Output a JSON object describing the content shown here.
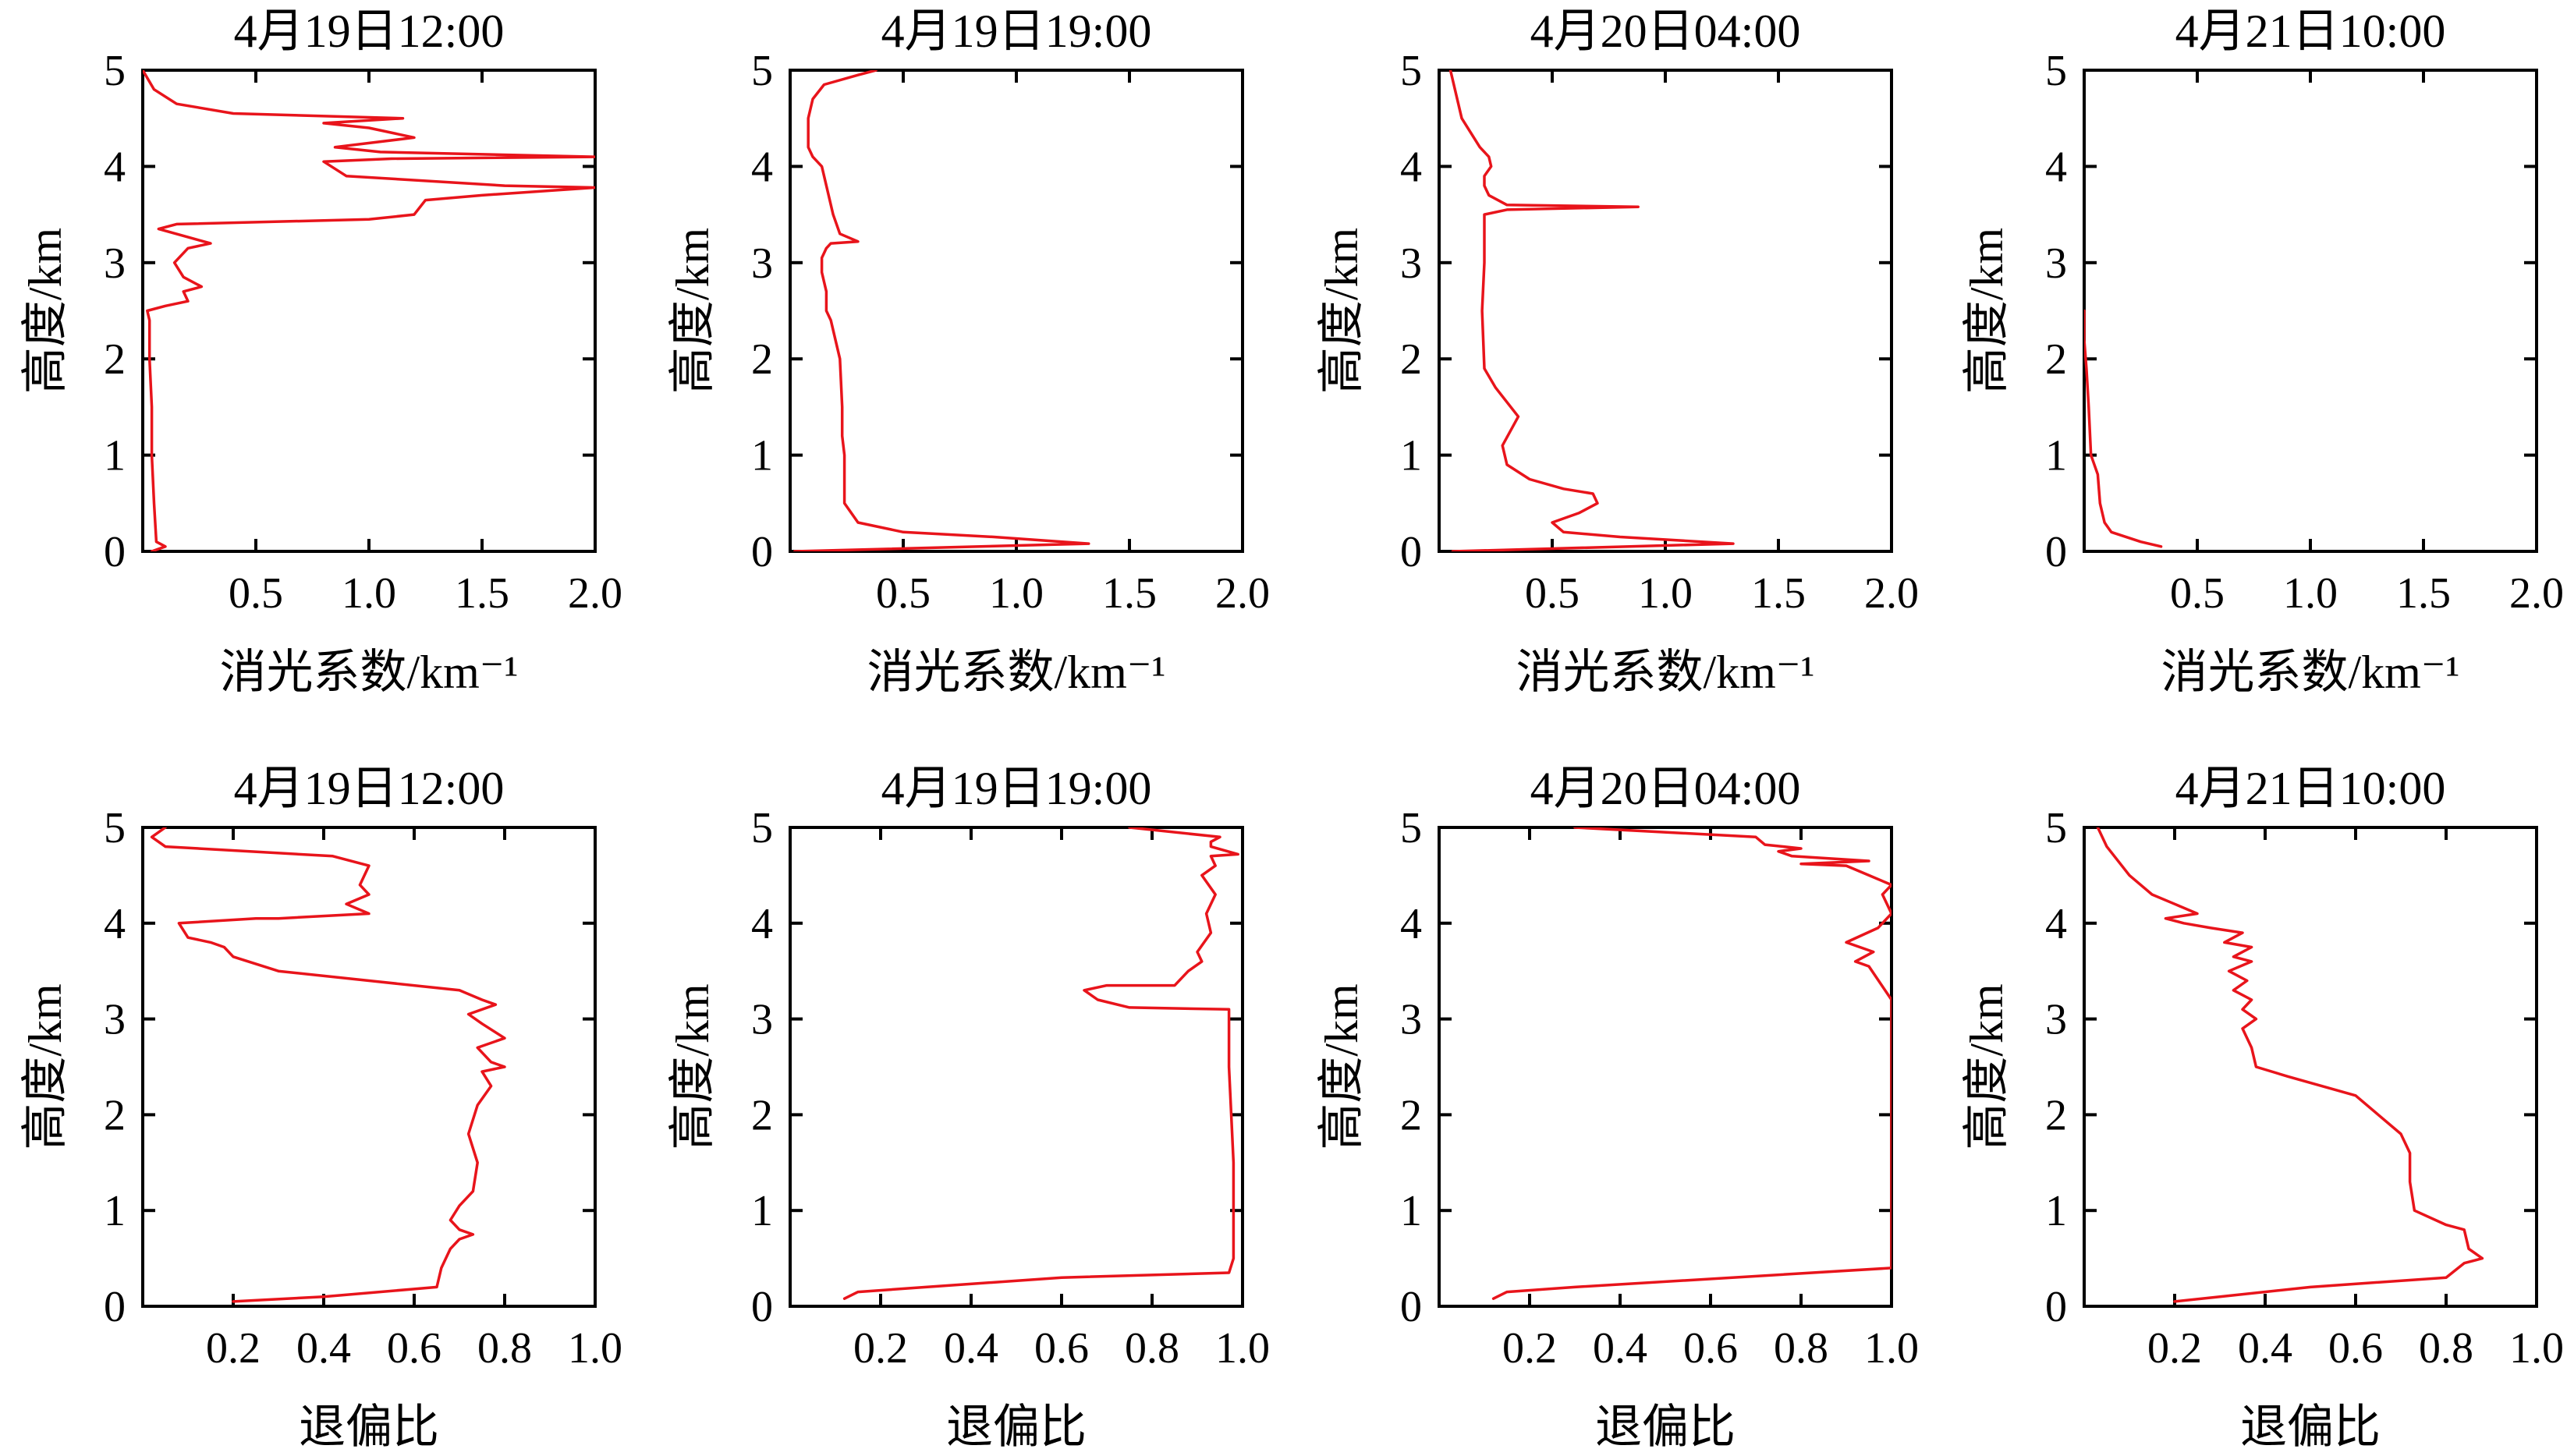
{
  "colors": {
    "series": "#e8141b",
    "axes": "#000000"
  },
  "chart_data": [
    {
      "type": "line",
      "title": "4月19日12:00",
      "xlabel": "消光系数/km⁻¹",
      "ylabel": "高度/km",
      "xlim": [
        0,
        2.0
      ],
      "ylim": [
        0,
        5
      ],
      "xticks": [
        "0.5",
        "1.0",
        "1.5",
        "2.0"
      ],
      "yticks": [
        "0",
        "1",
        "2",
        "3",
        "4",
        "5"
      ],
      "series": [
        {
          "name": "消光系数",
          "x": [
            0.04,
            0.1,
            0.06,
            0.05,
            0.04,
            0.04,
            0.03,
            0.03,
            0.02,
            0.1,
            0.2,
            0.18,
            0.26,
            0.18,
            0.14,
            0.2,
            0.3,
            0.07,
            0.15,
            1.0,
            1.2,
            1.25,
            1.5,
            2.0,
            1.6,
            0.9,
            0.8,
            1.1,
            2.0,
            1.05,
            0.85,
            1.2,
            1.0,
            0.8,
            1.15,
            0.4,
            0.15,
            0.05,
            0.0
          ],
          "y": [
            0.0,
            0.05,
            0.1,
            0.5,
            1.0,
            1.5,
            2.0,
            2.4,
            2.5,
            2.55,
            2.6,
            2.7,
            2.75,
            2.85,
            3.0,
            3.15,
            3.2,
            3.35,
            3.4,
            3.45,
            3.5,
            3.65,
            3.7,
            3.78,
            3.8,
            3.9,
            4.05,
            4.08,
            4.1,
            4.15,
            4.2,
            4.3,
            4.4,
            4.45,
            4.5,
            4.55,
            4.65,
            4.8,
            5.0
          ]
        }
      ]
    },
    {
      "type": "line",
      "title": "4月19日19:00",
      "xlabel": "消光系数/km⁻¹",
      "ylabel": "高度/km",
      "xlim": [
        0,
        2.0
      ],
      "ylim": [
        0,
        5
      ],
      "xticks": [
        "0.5",
        "1.0",
        "1.5",
        "2.0"
      ],
      "yticks": [
        "0",
        "1",
        "2",
        "3",
        "4",
        "5"
      ],
      "series": [
        {
          "name": "消光系数",
          "x": [
            0.02,
            1.32,
            0.9,
            0.5,
            0.3,
            0.24,
            0.24,
            0.23,
            0.23,
            0.22,
            0.18,
            0.16,
            0.16,
            0.15,
            0.14,
            0.14,
            0.15,
            0.16,
            0.18,
            0.3,
            0.22,
            0.19,
            0.17,
            0.15,
            0.14,
            0.1,
            0.08,
            0.08,
            0.1,
            0.15,
            0.3,
            0.38
          ],
          "y": [
            0.0,
            0.08,
            0.15,
            0.2,
            0.3,
            0.5,
            1.0,
            1.2,
            1.5,
            2.0,
            2.4,
            2.5,
            2.7,
            2.8,
            2.9,
            3.05,
            3.1,
            3.15,
            3.2,
            3.22,
            3.3,
            3.5,
            3.7,
            3.9,
            4.0,
            4.1,
            4.2,
            4.5,
            4.7,
            4.85,
            4.95,
            5.0
          ]
        }
      ]
    },
    {
      "type": "line",
      "title": "4月20日04:00",
      "xlabel": "消光系数/km⁻¹",
      "ylabel": "高度/km",
      "xlim": [
        0,
        2.0
      ],
      "ylim": [
        0,
        5
      ],
      "xticks": [
        "0.5",
        "1.0",
        "1.5",
        "2.0"
      ],
      "yticks": [
        "0",
        "1",
        "2",
        "3",
        "4",
        "5"
      ],
      "series": [
        {
          "name": "消光系数",
          "x": [
            0.06,
            1.3,
            0.8,
            0.55,
            0.5,
            0.62,
            0.7,
            0.68,
            0.55,
            0.4,
            0.3,
            0.28,
            0.35,
            0.3,
            0.25,
            0.2,
            0.19,
            0.2,
            0.2,
            0.3,
            0.88,
            0.3,
            0.22,
            0.2,
            0.2,
            0.23,
            0.22,
            0.18,
            0.1,
            0.05
          ],
          "y": [
            0.0,
            0.08,
            0.15,
            0.2,
            0.3,
            0.4,
            0.5,
            0.6,
            0.65,
            0.75,
            0.9,
            1.1,
            1.4,
            1.55,
            1.7,
            1.9,
            2.5,
            3.0,
            3.5,
            3.55,
            3.58,
            3.6,
            3.7,
            3.8,
            3.9,
            4.0,
            4.1,
            4.2,
            4.5,
            5.0
          ]
        }
      ]
    },
    {
      "type": "line",
      "title": "4月21日10:00",
      "xlabel": "消光系数/km⁻¹",
      "ylabel": "高度/km",
      "xlim": [
        0,
        2.0
      ],
      "ylim": [
        0,
        5
      ],
      "xticks": [
        "0.5",
        "1.0",
        "1.5",
        "2.0"
      ],
      "yticks": [
        "0",
        "1",
        "2",
        "3",
        "4",
        "5"
      ],
      "series": [
        {
          "name": "消光系数",
          "x": [
            0.34,
            0.25,
            0.12,
            0.09,
            0.07,
            0.06,
            0.03,
            0.02,
            0.01,
            0.0,
            0.0
          ],
          "y": [
            0.05,
            0.1,
            0.2,
            0.3,
            0.5,
            0.8,
            1.0,
            1.5,
            1.9,
            2.2,
            2.5
          ]
        }
      ]
    },
    {
      "type": "line",
      "title": "4月19日12:00",
      "xlabel": "退偏比",
      "ylabel": "高度/km",
      "xlim": [
        0,
        1.0
      ],
      "ylim": [
        0,
        5
      ],
      "xticks": [
        "0.2",
        "0.4",
        "0.6",
        "0.8",
        "1.0"
      ],
      "yticks": [
        "0",
        "1",
        "2",
        "3",
        "4",
        "5"
      ],
      "series": [
        {
          "name": "退偏比",
          "x": [
            0.2,
            0.4,
            0.65,
            0.66,
            0.68,
            0.7,
            0.73,
            0.7,
            0.68,
            0.7,
            0.73,
            0.74,
            0.72,
            0.74,
            0.77,
            0.75,
            0.8,
            0.77,
            0.74,
            0.8,
            0.75,
            0.72,
            0.78,
            0.75,
            0.7,
            0.5,
            0.3,
            0.2,
            0.18,
            0.15,
            0.1,
            0.08,
            0.25,
            0.3,
            0.5,
            0.45,
            0.5,
            0.48,
            0.5,
            0.42,
            0.05,
            0.02,
            0.05
          ],
          "y": [
            0.05,
            0.1,
            0.2,
            0.4,
            0.6,
            0.7,
            0.75,
            0.8,
            0.9,
            1.05,
            1.2,
            1.5,
            1.8,
            2.1,
            2.3,
            2.45,
            2.5,
            2.55,
            2.7,
            2.8,
            2.95,
            3.05,
            3.15,
            3.2,
            3.3,
            3.4,
            3.5,
            3.65,
            3.75,
            3.8,
            3.85,
            4.0,
            4.05,
            4.05,
            4.1,
            4.2,
            4.3,
            4.4,
            4.6,
            4.7,
            4.8,
            4.9,
            5.0
          ]
        }
      ]
    },
    {
      "type": "line",
      "title": "4月19日19:00",
      "xlabel": "退偏比",
      "ylabel": "高度/km",
      "xlim": [
        0,
        1.0
      ],
      "ylim": [
        0,
        5
      ],
      "xticks": [
        "0.2",
        "0.4",
        "0.6",
        "0.8",
        "1.0"
      ],
      "yticks": [
        "0",
        "1",
        "2",
        "3",
        "4",
        "5"
      ],
      "series": [
        {
          "name": "退偏比",
          "x": [
            0.12,
            0.15,
            0.3,
            0.6,
            0.97,
            0.98,
            0.98,
            0.97,
            0.97,
            0.75,
            0.68,
            0.65,
            0.7,
            0.85,
            0.88,
            0.91,
            0.9,
            0.93,
            0.92,
            0.94,
            0.91,
            0.94,
            0.93,
            0.99,
            0.93,
            0.93,
            0.95,
            0.75
          ],
          "y": [
            0.08,
            0.15,
            0.2,
            0.3,
            0.35,
            0.5,
            1.5,
            2.5,
            3.1,
            3.12,
            3.2,
            3.3,
            3.35,
            3.35,
            3.5,
            3.6,
            3.7,
            3.9,
            4.1,
            4.3,
            4.5,
            4.6,
            4.7,
            4.72,
            4.8,
            4.85,
            4.9,
            5.0
          ]
        }
      ]
    },
    {
      "type": "line",
      "title": "4月20日04:00",
      "xlabel": "退偏比",
      "ylabel": "高度/km",
      "xlim": [
        0,
        1.0
      ],
      "ylim": [
        0,
        5
      ],
      "xticks": [
        "0.2",
        "0.4",
        "0.6",
        "0.8",
        "1.0"
      ],
      "yticks": [
        "0",
        "1",
        "2",
        "3",
        "4",
        "5"
      ],
      "series": [
        {
          "name": "退偏比",
          "x": [
            0.12,
            0.15,
            0.3,
            1.0,
            1.0,
            1.0,
            0.95,
            0.92,
            0.96,
            0.9,
            0.97,
            1.0,
            0.98,
            1.0,
            0.95,
            0.9,
            0.8,
            0.95,
            0.78,
            0.75,
            0.8,
            0.72,
            0.7,
            0.3
          ],
          "y": [
            0.08,
            0.15,
            0.2,
            0.4,
            2.0,
            3.2,
            3.55,
            3.6,
            3.7,
            3.8,
            3.95,
            4.1,
            4.3,
            4.4,
            4.5,
            4.6,
            4.62,
            4.65,
            4.7,
            4.75,
            4.78,
            4.82,
            4.9,
            5.0
          ]
        }
      ]
    },
    {
      "type": "line",
      "title": "4月21日10:00",
      "xlabel": "退偏比",
      "ylabel": "高度/km",
      "xlim": [
        0,
        1.0
      ],
      "ylim": [
        0,
        5
      ],
      "xticks": [
        "0.2",
        "0.4",
        "0.6",
        "0.8",
        "1.0"
      ],
      "yticks": [
        "0",
        "1",
        "2",
        "3",
        "4",
        "5"
      ],
      "series": [
        {
          "name": "退偏比",
          "x": [
            0.2,
            0.3,
            0.5,
            0.8,
            0.84,
            0.88,
            0.85,
            0.84,
            0.8,
            0.73,
            0.72,
            0.72,
            0.7,
            0.65,
            0.6,
            0.45,
            0.38,
            0.37,
            0.35,
            0.38,
            0.35,
            0.37,
            0.33,
            0.36,
            0.32,
            0.37,
            0.33,
            0.37,
            0.31,
            0.35,
            0.28,
            0.22,
            0.18,
            0.25,
            0.2,
            0.15,
            0.1,
            0.05,
            0.03
          ],
          "y": [
            0.05,
            0.1,
            0.2,
            0.3,
            0.45,
            0.5,
            0.6,
            0.8,
            0.85,
            1.0,
            1.3,
            1.6,
            1.8,
            2.0,
            2.2,
            2.4,
            2.5,
            2.7,
            2.9,
            3.0,
            3.1,
            3.2,
            3.3,
            3.4,
            3.5,
            3.6,
            3.65,
            3.75,
            3.8,
            3.9,
            3.95,
            4.0,
            4.05,
            4.1,
            4.2,
            4.3,
            4.5,
            4.8,
            5.0
          ]
        }
      ]
    }
  ]
}
